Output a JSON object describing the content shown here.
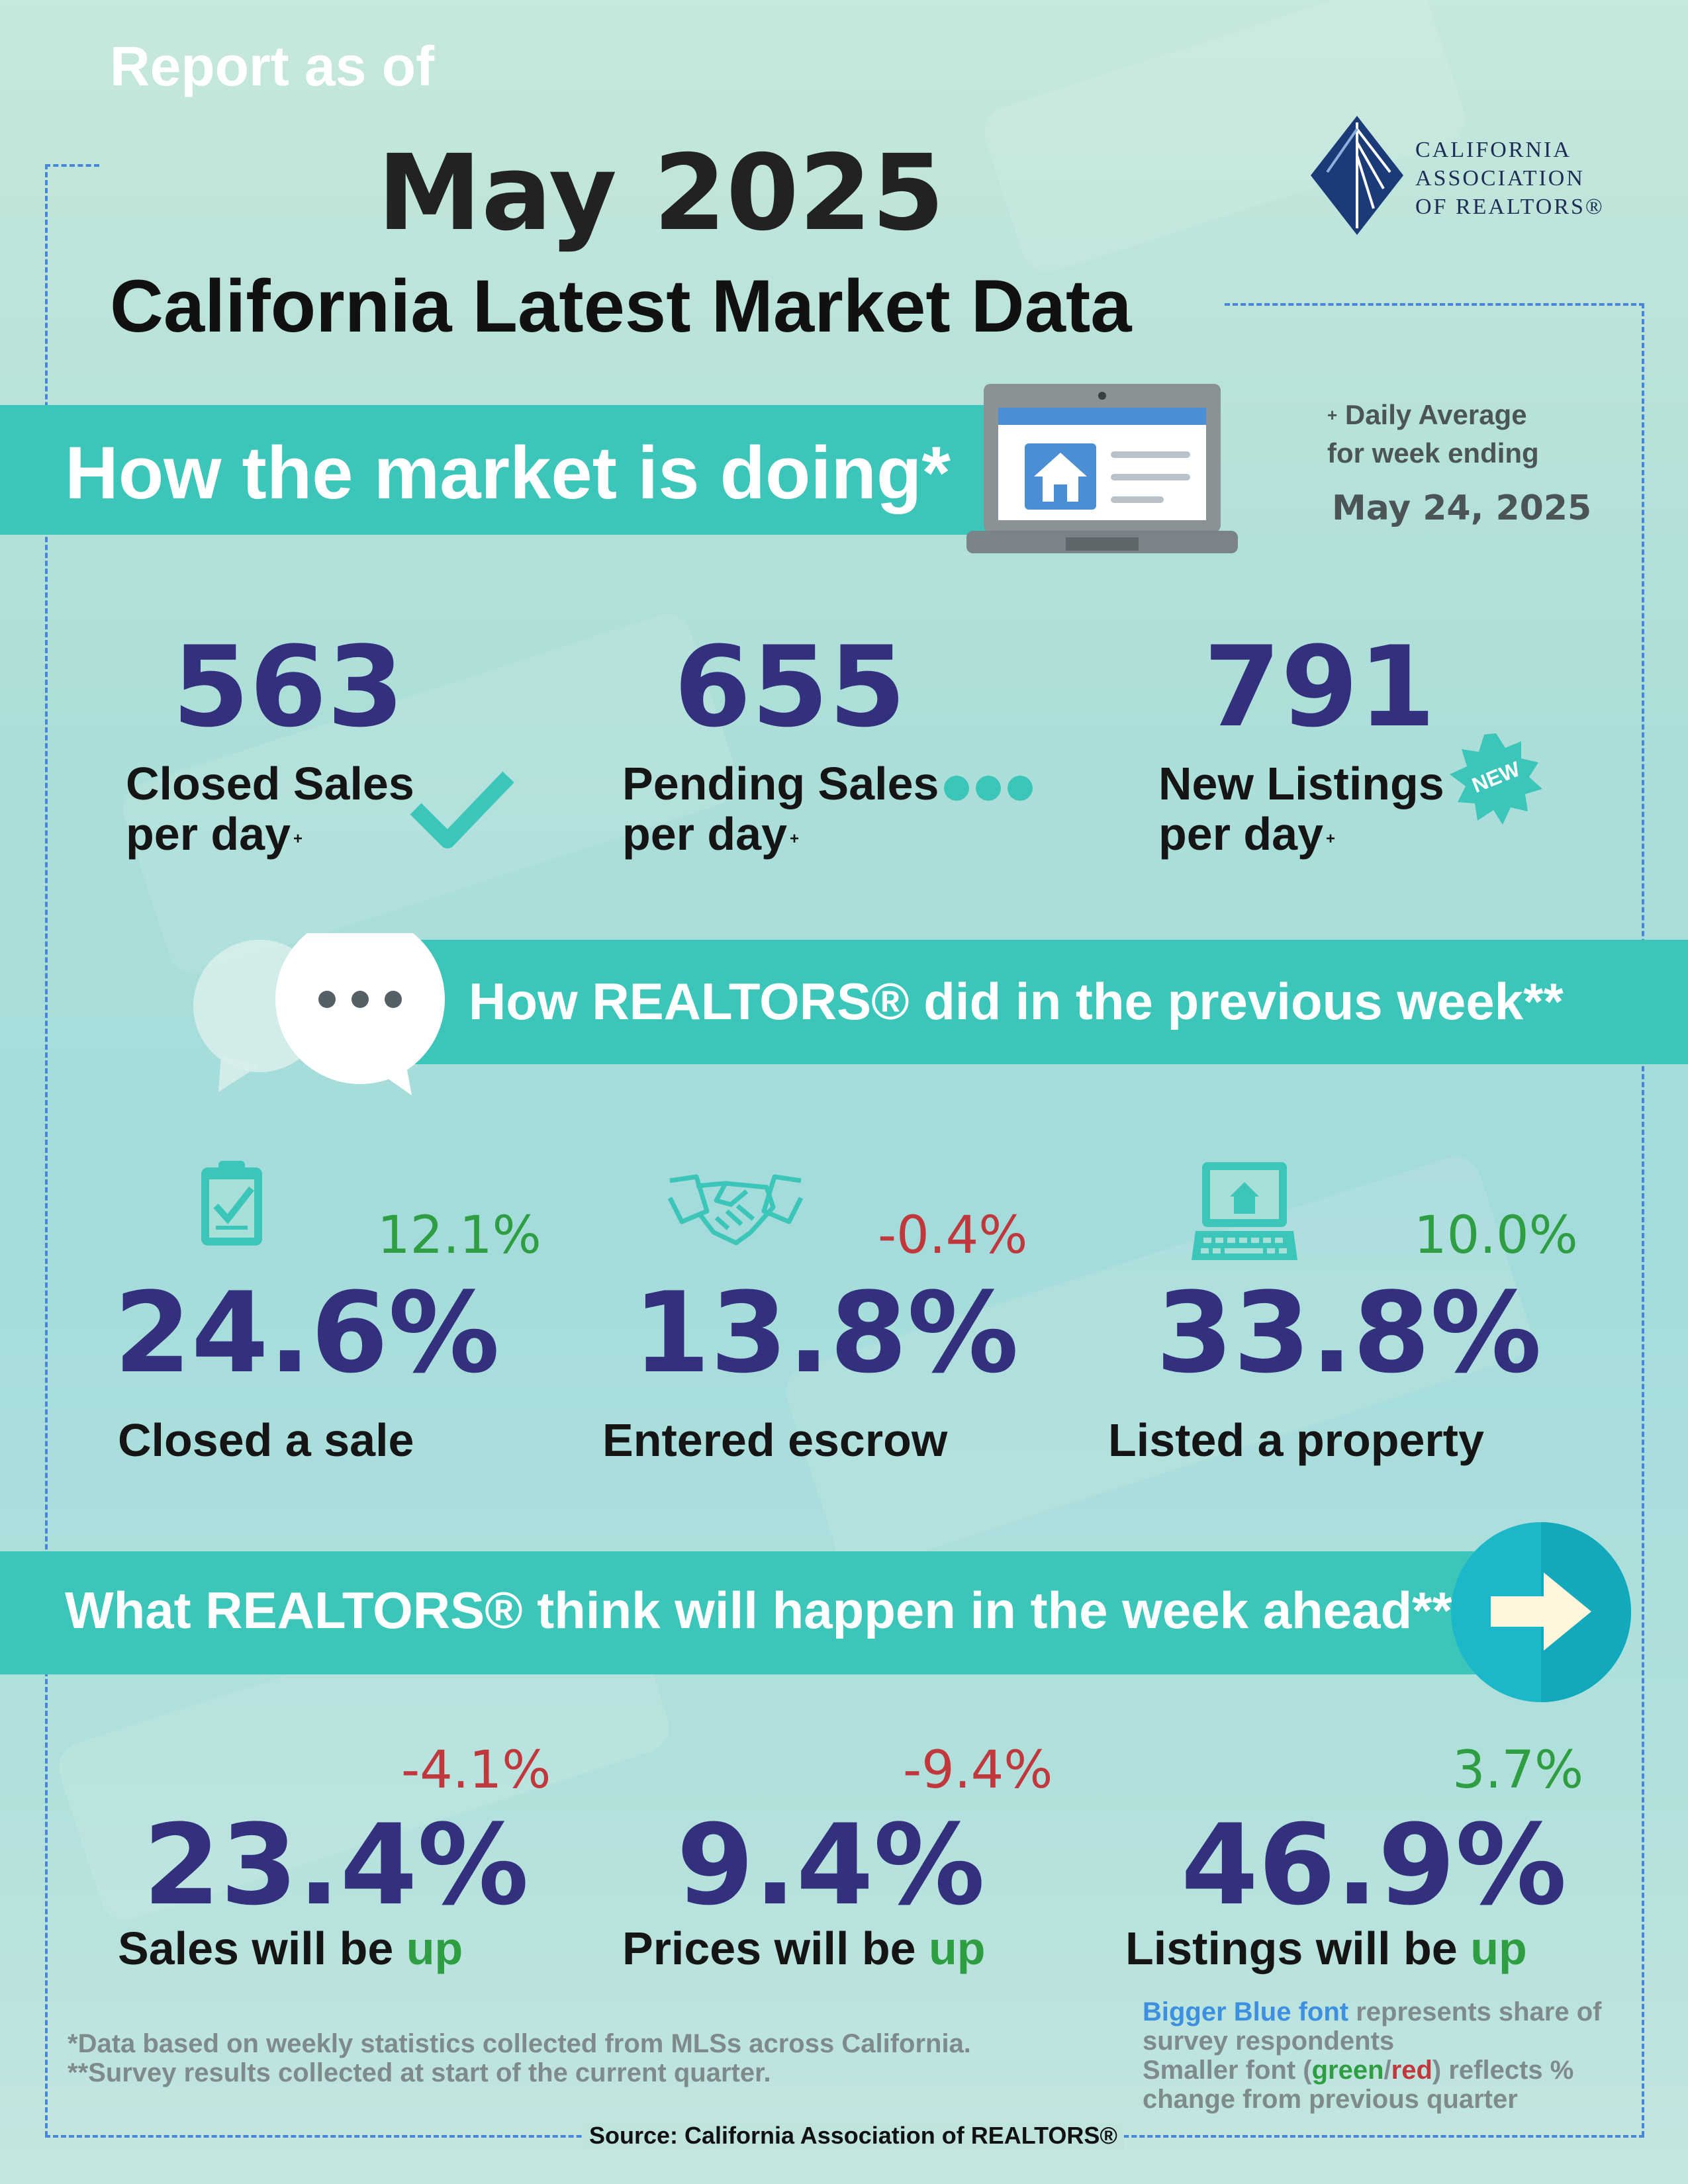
{
  "header": {
    "report_as_of": "Report as of",
    "month": "May 2025",
    "title": "California Latest Market Data"
  },
  "logo": {
    "line1": "CALIFORNIA",
    "line2": "ASSOCIATION",
    "line3": "OF REALTORS®"
  },
  "market": {
    "heading": "How the market is doing*",
    "daily_avg_line1": "Daily Average",
    "daily_avg_line2": "for week ending",
    "week_ending": "May 24, 2025",
    "metrics": [
      {
        "value": "563",
        "label_line1": "Closed Sales",
        "label_line2": "per day"
      },
      {
        "value": "655",
        "label_line1": "Pending Sales",
        "label_line2": "per day"
      },
      {
        "value": "791",
        "label_line1": "New Listings",
        "label_line2": "per day"
      }
    ],
    "new_badge": "NEW"
  },
  "previous_week": {
    "heading": "How REALTORS® did in the previous week**",
    "metrics": [
      {
        "value": "24.6%",
        "change": "12.1%",
        "label": "Closed a sale"
      },
      {
        "value": "13.8%",
        "change": "-0.4%",
        "label": "Entered escrow"
      },
      {
        "value": "33.8%",
        "change": "10.0%",
        "label": "Listed a property"
      }
    ]
  },
  "week_ahead": {
    "heading": "What REALTORS® think will happen in the week ahead**",
    "metrics": [
      {
        "value": "23.4%",
        "change": "-4.1%",
        "label_prefix": "Sales will be",
        "label_word": "up"
      },
      {
        "value": "9.4%",
        "change": "-9.4%",
        "label_prefix": "Prices will be",
        "label_word": "up"
      },
      {
        "value": "46.9%",
        "change": "3.7%",
        "label_prefix": "Listings will be",
        "label_word": "up"
      }
    ]
  },
  "footnotes": {
    "note1": "*Data based on weekly statistics collected from MLSs across California.",
    "note2": "**Survey results collected at start of the current quarter.",
    "source": "Source: California Association of REALTORS®"
  },
  "legend": {
    "blue_phrase": "Bigger Blue font",
    "blue_rest": " represents share of",
    "line2": "survey respondents",
    "line3_prefix": "Smaller font (",
    "green": "green",
    "slash": "/",
    "red": "red",
    "line3_suffix": ") reflects %",
    "line4": "change from previous quarter"
  },
  "colors": {
    "band": "#3cc5b9",
    "number": "#33317d",
    "positive": "#2f9e42",
    "negative": "#c0383b",
    "dashed_border": "#4a86d6"
  }
}
